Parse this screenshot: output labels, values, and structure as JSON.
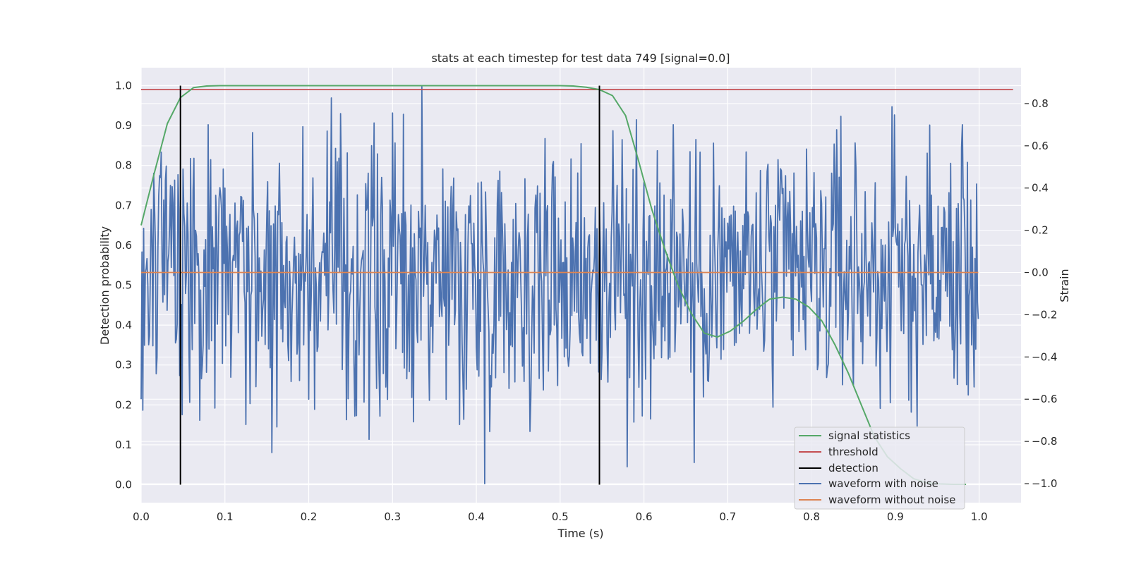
{
  "chart_data": {
    "type": "line",
    "title": "stats at each timestep for test data 749 [signal=0.0]",
    "xlabel": "Time (s)",
    "ylabel_left": "Detection probability",
    "ylabel_right": "Strain",
    "xlim": [
      0.0,
      1.05
    ],
    "ylim_left": [
      -0.045,
      1.045
    ],
    "ylim_right": [
      -1.09,
      0.97
    ],
    "x_ticks": [
      "0.0",
      "0.1",
      "0.2",
      "0.3",
      "0.4",
      "0.5",
      "0.6",
      "0.7",
      "0.8",
      "0.9",
      "1.0"
    ],
    "y_ticks_left": [
      "0.0",
      "0.1",
      "0.2",
      "0.3",
      "0.4",
      "0.5",
      "0.6",
      "0.7",
      "0.8",
      "0.9",
      "1.0"
    ],
    "y_ticks_right": [
      "−1.0",
      "−0.8",
      "−0.6",
      "−0.4",
      "−0.2",
      "0.0",
      "0.2",
      "0.4",
      "0.6",
      "0.8"
    ],
    "grid": true,
    "legend_position": "lower-right",
    "colors": {
      "signal_statistics": "#55a868",
      "threshold": "#c44e52",
      "detection": "#000000",
      "waveform_with_noise": "#4c72b0",
      "waveform_without_noise": "#dd8452",
      "plot_background": "#eaeaf2",
      "grid": "#ffffff"
    },
    "series": [
      {
        "name": "signal statistics",
        "axis": "left",
        "x": [
          0.0,
          0.0156,
          0.0313,
          0.0469,
          0.0625,
          0.0781,
          0.0938,
          0.1094,
          0.125,
          0.1406,
          0.1563,
          0.1719,
          0.1875,
          0.2031,
          0.2188,
          0.2344,
          0.25,
          0.2656,
          0.2813,
          0.2969,
          0.3125,
          0.3281,
          0.3438,
          0.3594,
          0.375,
          0.3906,
          0.4063,
          0.4219,
          0.4375,
          0.4531,
          0.4688,
          0.4844,
          0.5,
          0.5156,
          0.5313,
          0.5469,
          0.5625,
          0.5781,
          0.5938,
          0.6094,
          0.625,
          0.6406,
          0.6563,
          0.6719,
          0.6875,
          0.7031,
          0.7188,
          0.7344,
          0.75,
          0.7656,
          0.7813,
          0.7969,
          0.8125,
          0.8281,
          0.8438,
          0.8594,
          0.875,
          0.8906,
          0.9063,
          0.9219,
          0.9375,
          0.9531,
          0.9688,
          0.9844
        ],
        "values": [
          0.65,
          0.78,
          0.905,
          0.97,
          0.995,
          0.999,
          1.0,
          1.0,
          1.0,
          1.0,
          1.0,
          1.0,
          1.0,
          1.0,
          1.0,
          1.0,
          1.0,
          1.0,
          1.0,
          1.0,
          1.0,
          1.0,
          1.0,
          1.0,
          1.0,
          1.0,
          1.0,
          1.0,
          1.0,
          1.0,
          1.0,
          1.0,
          1.0,
          0.999,
          0.996,
          0.99,
          0.975,
          0.925,
          0.81,
          0.69,
          0.59,
          0.5,
          0.43,
          0.38,
          0.37,
          0.385,
          0.41,
          0.44,
          0.465,
          0.47,
          0.465,
          0.445,
          0.41,
          0.35,
          0.28,
          0.2,
          0.12,
          0.07,
          0.04,
          0.015,
          0.005,
          0.002,
          0.001,
          0.001
        ]
      },
      {
        "name": "threshold",
        "axis": "left",
        "x": [
          0.0,
          1.0405
        ],
        "values": [
          0.99,
          0.99
        ]
      },
      {
        "name": "detection",
        "axis": "left",
        "segments": [
          {
            "x": 0.0469,
            "y0": 0.0,
            "y1": 1.0
          },
          {
            "x": 0.5469,
            "y0": 0.0,
            "y1": 1.0
          }
        ]
      },
      {
        "name": "waveform with noise",
        "axis": "right",
        "x_start": 0.0,
        "x_end": 0.999,
        "n_points": 1000,
        "values_sampled": [
          [
            0.0,
            -0.6
          ],
          [
            0.005,
            0.0
          ],
          [
            0.01,
            -0.3
          ],
          [
            0.015,
            0.47
          ],
          [
            0.02,
            0.1
          ],
          [
            0.024,
            0.57
          ],
          [
            0.05,
            0.49
          ],
          [
            0.07,
            -0.7
          ],
          [
            0.08,
            0.7
          ],
          [
            0.1,
            0.4
          ],
          [
            0.125,
            -0.72
          ],
          [
            0.2,
            -0.6
          ],
          [
            0.255,
            -0.68
          ],
          [
            0.285,
            -0.68
          ],
          [
            0.335,
            0.88
          ],
          [
            0.38,
            -0.72
          ],
          [
            0.41,
            -1.0
          ],
          [
            0.525,
            0.61
          ],
          [
            0.58,
            -0.92
          ],
          [
            0.635,
            0.7
          ],
          [
            0.66,
            -0.9
          ],
          [
            0.835,
            0.74
          ],
          [
            0.98,
            0.7
          ],
          [
            0.97,
            -0.5
          ],
          [
            0.999,
            -0.22
          ]
        ]
      },
      {
        "name": "waveform without noise",
        "axis": "right",
        "x": [
          0.0,
          0.999
        ],
        "values": [
          0.0,
          0.0
        ]
      }
    ]
  }
}
